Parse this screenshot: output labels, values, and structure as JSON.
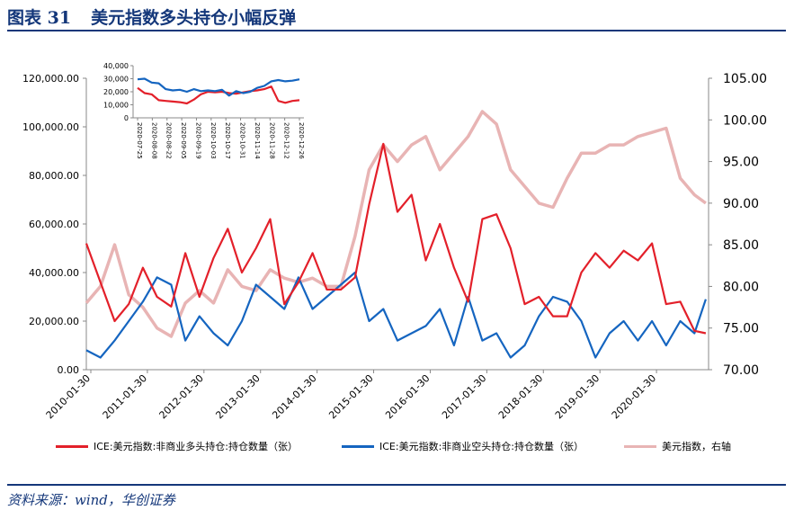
{
  "figure": {
    "number": "图表 31",
    "title": "美元指数多头持仓小幅反弹",
    "source": "资料来源：wind，华创证券"
  },
  "colors": {
    "long": "#e3202a",
    "short": "#1565c0",
    "dxy": "#e8b4b4",
    "accent": "#14377a"
  },
  "legend": [
    {
      "key": "long",
      "label": "ICE:美元指数:非商业多头持仓:持仓数量（张）"
    },
    {
      "key": "short",
      "label": "ICE:美元指数:非商业空头持仓:持仓数量（张）"
    },
    {
      "key": "dxy",
      "label": "美元指数，右轴"
    }
  ],
  "chart_data": [
    {
      "type": "line",
      "title": "美元指数多头持仓小幅反弹",
      "x_ticks": [
        "2010-01-30",
        "2011-01-30",
        "2012-01-30",
        "2013-01-30",
        "2014-01-30",
        "2015-01-30",
        "2016-01-30",
        "2017-01-30",
        "2018-01-30",
        "2019-01-30",
        "2020-01-30"
      ],
      "x_range": [
        "2010-01-01",
        "2020-12-31"
      ],
      "y_left_ticks": [
        "0.00",
        "20,000.00",
        "40,000.00",
        "60,000.00",
        "80,000.00",
        "100,000.00",
        "120,000.00"
      ],
      "y_left_range": [
        0,
        120000
      ],
      "y_right_ticks": [
        "70.00",
        "75.00",
        "80.00",
        "85.00",
        "90.00",
        "95.00",
        "100.00",
        "105.00"
      ],
      "y_right_range": [
        70,
        105
      ],
      "x": [
        2010.0,
        2010.25,
        2010.5,
        2010.75,
        2011.0,
        2011.25,
        2011.5,
        2011.75,
        2012.0,
        2012.25,
        2012.5,
        2012.75,
        2013.0,
        2013.25,
        2013.5,
        2013.75,
        2014.0,
        2014.25,
        2014.5,
        2014.75,
        2015.0,
        2015.25,
        2015.5,
        2015.75,
        2016.0,
        2016.25,
        2016.5,
        2016.75,
        2017.0,
        2017.25,
        2017.5,
        2017.75,
        2018.0,
        2018.25,
        2018.5,
        2018.75,
        2019.0,
        2019.25,
        2019.5,
        2019.75,
        2020.0,
        2020.25,
        2020.5,
        2020.75,
        2020.95
      ],
      "series": [
        {
          "name": "ICE:美元指数:非商业多头持仓:持仓数量（张）",
          "axis": "left",
          "key": "long",
          "values": [
            52000,
            36000,
            20000,
            27000,
            42000,
            30000,
            26000,
            48000,
            30000,
            46000,
            58000,
            40000,
            50000,
            62000,
            27000,
            36000,
            48000,
            33000,
            33000,
            38000,
            68000,
            93000,
            65000,
            72000,
            45000,
            60000,
            42000,
            28000,
            62000,
            64000,
            50000,
            27000,
            30000,
            22000,
            22000,
            40000,
            48000,
            42000,
            49000,
            45000,
            52000,
            27000,
            28000,
            16000,
            15000
          ]
        },
        {
          "name": "ICE:美元指数:非商业空头持仓:持仓数量（张）",
          "axis": "left",
          "key": "short",
          "values": [
            8000,
            5000,
            12000,
            20000,
            28000,
            38000,
            35000,
            12000,
            22000,
            15000,
            10000,
            20000,
            35000,
            30000,
            25000,
            38000,
            25000,
            30000,
            35000,
            40000,
            20000,
            25000,
            12000,
            15000,
            18000,
            25000,
            10000,
            30000,
            12000,
            15000,
            5000,
            10000,
            22000,
            30000,
            28000,
            20000,
            5000,
            15000,
            20000,
            12000,
            20000,
            10000,
            20000,
            15000,
            29000
          ]
        },
        {
          "name": "美元指数，右轴",
          "axis": "right",
          "key": "dxy",
          "values": [
            78,
            80,
            85,
            79,
            77.5,
            75,
            74,
            78,
            79.5,
            78,
            82,
            80,
            79.5,
            82,
            81,
            80.5,
            81,
            80,
            80,
            86,
            94,
            97,
            95,
            97,
            98,
            94,
            96,
            98,
            101,
            99.5,
            94,
            92,
            90,
            89.5,
            93,
            96,
            96,
            97,
            97,
            98,
            98.5,
            99,
            93,
            91,
            90
          ]
        }
      ]
    },
    {
      "type": "line",
      "title": "",
      "x_ticks": [
        "2020-07-25",
        "2020-08-08",
        "2020-08-22",
        "2020-09-05",
        "2020-09-19",
        "2020-10-03",
        "2020-10-17",
        "2020-10-31",
        "2020-11-14",
        "2020-11-28",
        "2020-12-12",
        "2020-12-26"
      ],
      "y_ticks": [
        "0",
        "10,000",
        "20,000",
        "30,000",
        "40,000"
      ],
      "y_range": [
        0,
        40000
      ],
      "series": [
        {
          "name": "long",
          "key": "long",
          "values": [
            23000,
            19000,
            18000,
            13500,
            13000,
            12500,
            12000,
            11000,
            14000,
            18000,
            20000,
            19500,
            20000,
            19000,
            18500,
            19500,
            20500,
            21000,
            22000,
            24000,
            13000,
            11500,
            13000,
            13500
          ]
        },
        {
          "name": "short",
          "key": "short",
          "values": [
            29500,
            30000,
            27000,
            26500,
            22000,
            21000,
            21500,
            20000,
            22000,
            20500,
            21000,
            20500,
            21500,
            17000,
            20500,
            19000,
            20000,
            23000,
            24500,
            28000,
            29000,
            28000,
            28500,
            29500
          ]
        }
      ]
    }
  ]
}
